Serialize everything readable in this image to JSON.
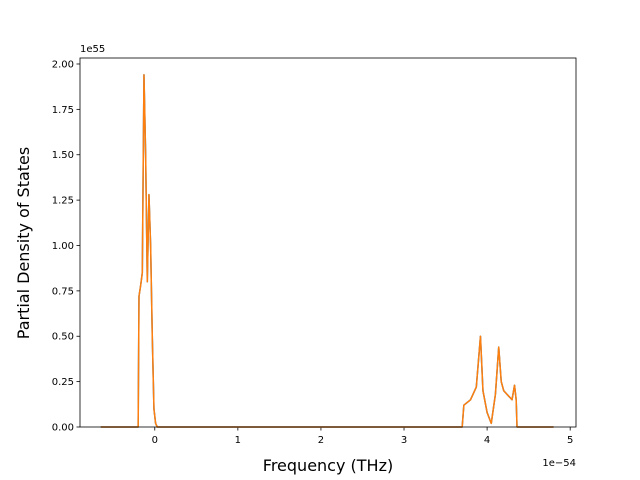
{
  "chart_data": {
    "type": "line",
    "xlabel": "Frequency (THz)",
    "ylabel": "Partial Density of States",
    "x_offset_label": "1e−54",
    "y_offset_label": "1e55",
    "x": [
      -0.65,
      -0.2,
      -0.19,
      -0.17,
      -0.15,
      -0.13,
      -0.11,
      -0.09,
      -0.07,
      -0.05,
      -0.03,
      -0.01,
      0.01,
      0.03,
      3.7,
      3.72,
      3.8,
      3.87,
      3.92,
      3.95,
      4.0,
      4.05,
      4.1,
      4.14,
      4.17,
      4.2,
      4.3,
      4.33,
      4.35,
      4.36,
      4.8
    ],
    "series": [
      {
        "color": "#1f77b4",
        "values": [
          0,
          0,
          0.72,
          0.78,
          0.85,
          1.94,
          1.5,
          0.8,
          1.28,
          1.0,
          0.5,
          0.1,
          0.02,
          0,
          0,
          0.12,
          0.15,
          0.22,
          0.5,
          0.2,
          0.08,
          0.02,
          0.18,
          0.44,
          0.25,
          0.2,
          0.15,
          0.23,
          0.15,
          0,
          0
        ]
      },
      {
        "color": "#ff7f0e",
        "values": [
          0,
          0,
          0.72,
          0.78,
          0.85,
          1.94,
          1.5,
          0.8,
          1.28,
          1.0,
          0.5,
          0.1,
          0.02,
          0,
          0,
          0.12,
          0.15,
          0.22,
          0.5,
          0.2,
          0.08,
          0.02,
          0.18,
          0.44,
          0.25,
          0.2,
          0.15,
          0.23,
          0.15,
          0,
          0
        ]
      }
    ],
    "xlim": [
      -0.9,
      5.07
    ],
    "xticks": [
      0,
      1,
      2,
      3,
      4,
      5
    ],
    "ylim": [
      0,
      2.033
    ],
    "yticks": [
      {
        "value": 0,
        "label": "0.00"
      },
      {
        "value": 0.25,
        "label": "0.25"
      },
      {
        "value": 0.5,
        "label": "0.50"
      },
      {
        "value": 0.75,
        "label": "0.75"
      },
      {
        "value": 1.0,
        "label": "1.00"
      },
      {
        "value": 1.25,
        "label": "1.25"
      },
      {
        "value": 1.5,
        "label": "1.50"
      },
      {
        "value": 1.75,
        "label": "1.75"
      },
      {
        "value": 2.0,
        "label": "2.00"
      }
    ],
    "grid": false
  }
}
